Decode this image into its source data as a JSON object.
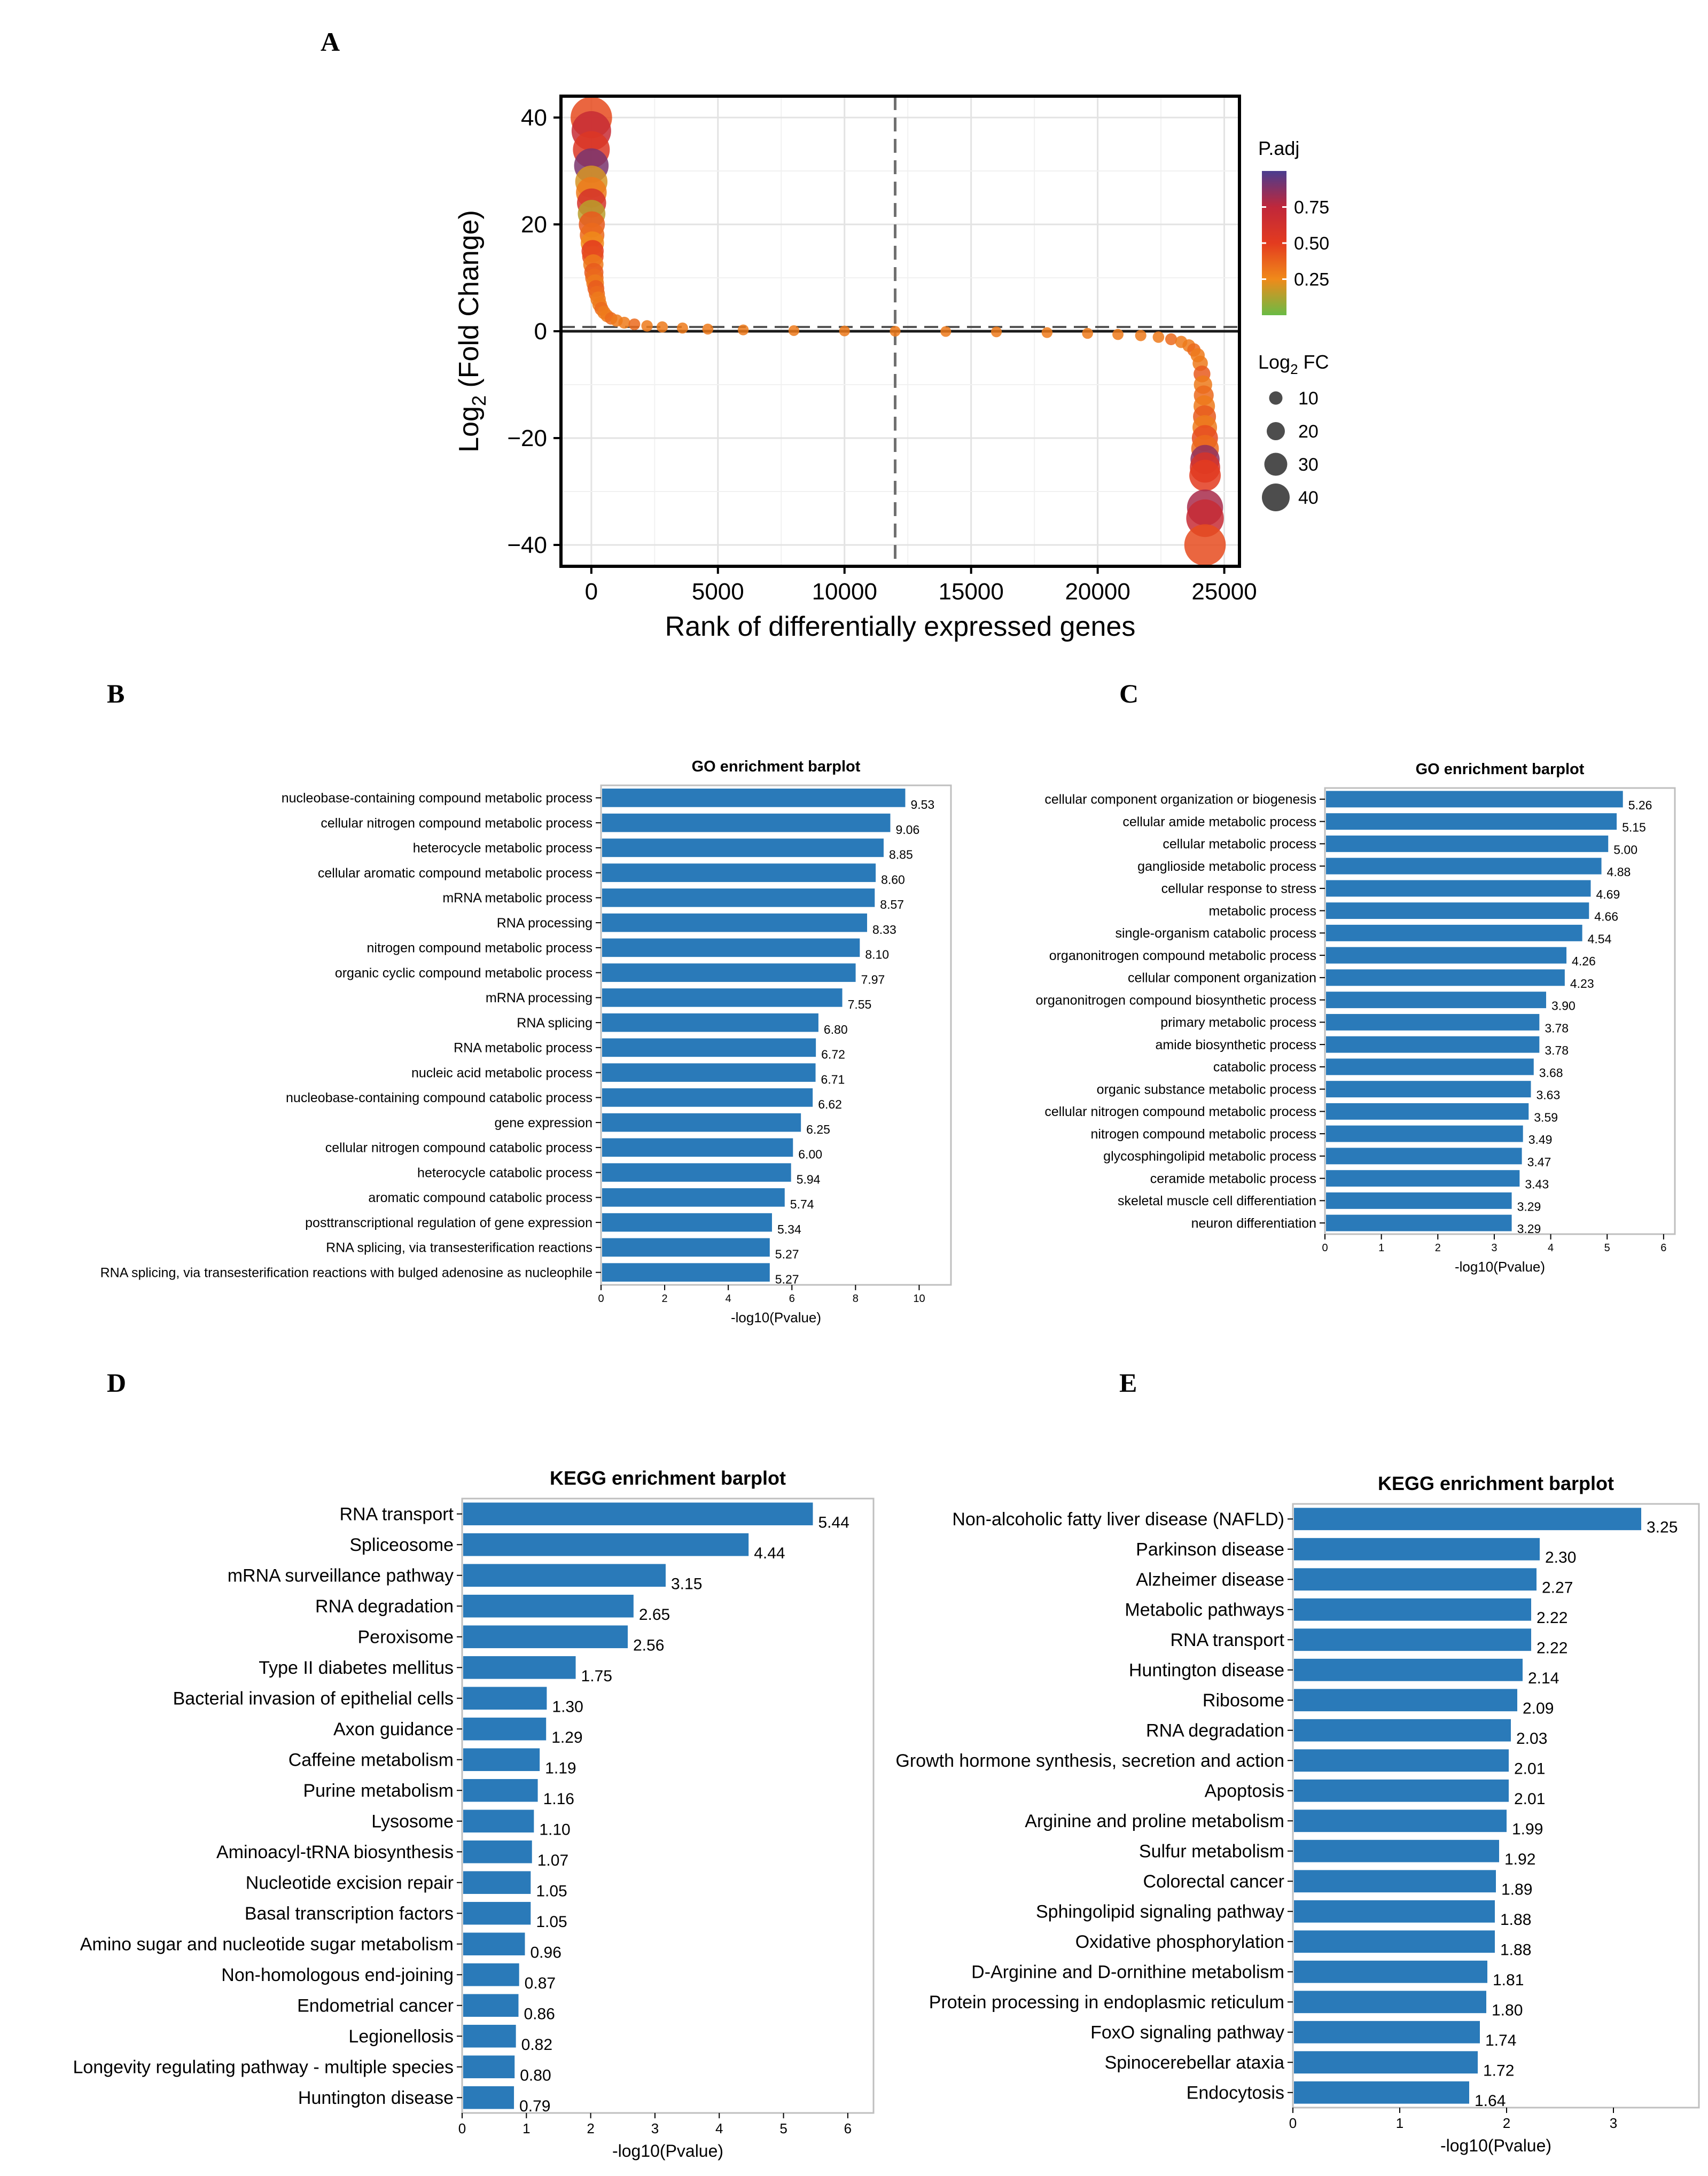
{
  "colors": {
    "bar": "#2a7ab9",
    "axis": "#000000",
    "grid": "#e3e3e3",
    "frame": "#bfbfbf",
    "refline": "#707070",
    "colorbar": [
      "#6abb45",
      "#f08a1a",
      "#e33b1f",
      "#c0273a",
      "#4a3d8f"
    ]
  },
  "chart_data": [
    {
      "panel": "A",
      "type": "scatter",
      "title": "",
      "xlabel": "Rank of differentially expressed genes",
      "ylabel_main": "Log",
      "ylabel_sub": "2",
      "ylabel_tail": " (Fold Change)",
      "xlim": [
        -1200,
        25600
      ],
      "ylim": [
        -44,
        44
      ],
      "xticks": [
        0,
        5000,
        10000,
        15000,
        20000,
        25000
      ],
      "xtick_labels": [
        "0",
        "5000",
        "10000",
        "15000",
        "20000",
        "25000"
      ],
      "yticks": [
        -40,
        -20,
        0,
        20,
        40
      ],
      "ytick_labels": [
        "−40",
        "−20",
        "0",
        "20",
        "40"
      ],
      "vline_x": 12000,
      "hline_y": 0,
      "legend_color_title": "P.adj",
      "legend_color_ticks": [
        0.25,
        0.5,
        0.75
      ],
      "legend_color_labels": [
        "0.25",
        "0.50",
        "0.75"
      ],
      "legend_size_title_main": "Log",
      "legend_size_title_sub": "2",
      "legend_size_title_tail": " FC",
      "legend_size_values": [
        10,
        20,
        30,
        40
      ],
      "legend_size_labels": [
        "10",
        "20",
        "30",
        "40"
      ],
      "points": [
        {
          "x": 0,
          "y": 40.0,
          "p": 0.45
        },
        {
          "x": 0,
          "y": 37.5,
          "p": 0.7
        },
        {
          "x": 0,
          "y": 34.0,
          "p": 0.55
        },
        {
          "x": 0,
          "y": 31.0,
          "p": 0.9
        },
        {
          "x": 0,
          "y": 28.0,
          "p": 0.2
        },
        {
          "x": 0,
          "y": 26.0,
          "p": 0.3
        },
        {
          "x": 10,
          "y": 24.0,
          "p": 0.6
        },
        {
          "x": 10,
          "y": 22.0,
          "p": 0.15
        },
        {
          "x": 20,
          "y": 20.0,
          "p": 0.4
        },
        {
          "x": 30,
          "y": 18.0,
          "p": 0.35
        },
        {
          "x": 40,
          "y": 16.5,
          "p": 0.25
        },
        {
          "x": 50,
          "y": 15.0,
          "p": 0.5
        },
        {
          "x": 60,
          "y": 14.0,
          "p": 0.45
        },
        {
          "x": 80,
          "y": 12.5,
          "p": 0.3
        },
        {
          "x": 100,
          "y": 11.0,
          "p": 0.4
        },
        {
          "x": 120,
          "y": 10.0,
          "p": 0.35
        },
        {
          "x": 150,
          "y": 9.0,
          "p": 0.3
        },
        {
          "x": 180,
          "y": 8.0,
          "p": 0.4
        },
        {
          "x": 220,
          "y": 7.0,
          "p": 0.35
        },
        {
          "x": 270,
          "y": 6.0,
          "p": 0.3
        },
        {
          "x": 330,
          "y": 5.0,
          "p": 0.3
        },
        {
          "x": 400,
          "y": 4.2,
          "p": 0.35
        },
        {
          "x": 500,
          "y": 3.5,
          "p": 0.3
        },
        {
          "x": 620,
          "y": 2.9,
          "p": 0.3
        },
        {
          "x": 780,
          "y": 2.4,
          "p": 0.35
        },
        {
          "x": 1000,
          "y": 2.0,
          "p": 0.3
        },
        {
          "x": 1300,
          "y": 1.6,
          "p": 0.3
        },
        {
          "x": 1700,
          "y": 1.3,
          "p": 0.35
        },
        {
          "x": 2200,
          "y": 1.0,
          "p": 0.3
        },
        {
          "x": 2800,
          "y": 0.8,
          "p": 0.3
        },
        {
          "x": 3600,
          "y": 0.6,
          "p": 0.3
        },
        {
          "x": 4600,
          "y": 0.4,
          "p": 0.3
        },
        {
          "x": 6000,
          "y": 0.25,
          "p": 0.3
        },
        {
          "x": 8000,
          "y": 0.12,
          "p": 0.3
        },
        {
          "x": 10000,
          "y": 0.05,
          "p": 0.3
        },
        {
          "x": 12000,
          "y": 0.0,
          "p": 0.3
        },
        {
          "x": 14000,
          "y": -0.05,
          "p": 0.3
        },
        {
          "x": 16000,
          "y": -0.12,
          "p": 0.3
        },
        {
          "x": 18000,
          "y": -0.25,
          "p": 0.3
        },
        {
          "x": 19600,
          "y": -0.4,
          "p": 0.3
        },
        {
          "x": 20800,
          "y": -0.6,
          "p": 0.3
        },
        {
          "x": 21700,
          "y": -0.8,
          "p": 0.3
        },
        {
          "x": 22400,
          "y": -1.1,
          "p": 0.3
        },
        {
          "x": 22900,
          "y": -1.5,
          "p": 0.35
        },
        {
          "x": 23300,
          "y": -2.0,
          "p": 0.3
        },
        {
          "x": 23600,
          "y": -2.7,
          "p": 0.3
        },
        {
          "x": 23800,
          "y": -3.5,
          "p": 0.35
        },
        {
          "x": 23950,
          "y": -4.5,
          "p": 0.3
        },
        {
          "x": 24050,
          "y": -6.0,
          "p": 0.3
        },
        {
          "x": 24120,
          "y": -8.0,
          "p": 0.4
        },
        {
          "x": 24160,
          "y": -10.0,
          "p": 0.3
        },
        {
          "x": 24190,
          "y": -12.0,
          "p": 0.35
        },
        {
          "x": 24210,
          "y": -14.0,
          "p": 0.3
        },
        {
          "x": 24220,
          "y": -16.0,
          "p": 0.4
        },
        {
          "x": 24230,
          "y": -18.0,
          "p": 0.3
        },
        {
          "x": 24235,
          "y": -20.0,
          "p": 0.45
        },
        {
          "x": 24240,
          "y": -22.0,
          "p": 0.35
        },
        {
          "x": 24240,
          "y": -24.0,
          "p": 0.85
        },
        {
          "x": 24240,
          "y": -25.5,
          "p": 0.6
        },
        {
          "x": 24240,
          "y": -27.0,
          "p": 0.5
        },
        {
          "x": 24240,
          "y": -33.0,
          "p": 0.8
        },
        {
          "x": 24240,
          "y": -35.0,
          "p": 0.7
        },
        {
          "x": 24240,
          "y": -40.0,
          "p": 0.45
        }
      ]
    },
    {
      "panel": "B",
      "type": "bar",
      "orientation": "horizontal",
      "title": "GO enrichment barplot",
      "xlabel": "-log10(Pvalue)",
      "xlim": [
        0,
        11
      ],
      "xticks": [
        0,
        2,
        4,
        6,
        8,
        10
      ],
      "xtick_labels": [
        "0",
        "2",
        "4",
        "6",
        "8",
        "10"
      ],
      "categories": [
        "nucleobase-containing compound metabolic process",
        "cellular nitrogen compound metabolic process",
        "heterocycle metabolic process",
        "cellular aromatic compound metabolic process",
        "mRNA metabolic process",
        "RNA processing",
        "nitrogen compound metabolic process",
        "organic cyclic compound metabolic process",
        "mRNA processing",
        "RNA splicing",
        "RNA metabolic process",
        "nucleic acid metabolic process",
        "nucleobase-containing compound catabolic process",
        "gene expression",
        "cellular nitrogen compound catabolic process",
        "heterocycle catabolic process",
        "aromatic compound catabolic process",
        "posttranscriptional regulation of gene expression",
        "RNA splicing, via transesterification reactions",
        "RNA splicing, via transesterification reactions with bulged adenosine as nucleophile"
      ],
      "values": [
        9.53,
        9.06,
        8.85,
        8.6,
        8.57,
        8.33,
        8.1,
        7.97,
        7.55,
        6.8,
        6.72,
        6.71,
        6.62,
        6.25,
        6.0,
        5.94,
        5.74,
        5.34,
        5.27,
        5.27
      ],
      "value_labels": [
        "9.53",
        "9.06",
        "8.85",
        "8.60",
        "8.57",
        "8.33",
        "8.10",
        "7.97",
        "7.55",
        "6.80",
        "6.72",
        "6.71",
        "6.62",
        "6.25",
        "6.00",
        "5.94",
        "5.74",
        "5.34",
        "5.27",
        "5.27"
      ]
    },
    {
      "panel": "C",
      "type": "bar",
      "orientation": "horizontal",
      "title": "GO enrichment barplot",
      "xlabel": "-log10(Pvalue)",
      "xlim": [
        0,
        6.2
      ],
      "xticks": [
        0,
        1,
        2,
        3,
        4,
        5,
        6
      ],
      "xtick_labels": [
        "0",
        "1",
        "2",
        "3",
        "4",
        "5",
        "6"
      ],
      "categories": [
        "cellular component organization or biogenesis",
        "cellular amide metabolic process",
        "cellular metabolic process",
        "ganglioside metabolic process",
        "cellular response to stress",
        "metabolic process",
        "single-organism catabolic process",
        "organonitrogen compound metabolic process",
        "cellular component organization",
        "organonitrogen compound biosynthetic process",
        "primary metabolic process",
        "amide biosynthetic process",
        "catabolic process",
        "organic substance metabolic process",
        "cellular nitrogen compound metabolic process",
        "nitrogen compound metabolic process",
        "glycosphingolipid metabolic process",
        "ceramide metabolic process",
        "skeletal muscle cell differentiation",
        "neuron differentiation"
      ],
      "values": [
        5.26,
        5.15,
        5.0,
        4.88,
        4.69,
        4.66,
        4.54,
        4.26,
        4.23,
        3.9,
        3.78,
        3.78,
        3.68,
        3.63,
        3.59,
        3.49,
        3.47,
        3.43,
        3.29,
        3.29
      ],
      "value_labels": [
        "5.26",
        "5.15",
        "5.00",
        "4.88",
        "4.69",
        "4.66",
        "4.54",
        "4.26",
        "4.23",
        "3.90",
        "3.78",
        "3.78",
        "3.68",
        "3.63",
        "3.59",
        "3.49",
        "3.47",
        "3.43",
        "3.29",
        "3.29"
      ]
    },
    {
      "panel": "D",
      "type": "bar",
      "orientation": "horizontal",
      "title": "KEGG enrichment barplot",
      "xlabel": "-log10(Pvalue)",
      "xlim": [
        0,
        6.4
      ],
      "xticks": [
        0,
        1,
        2,
        3,
        4,
        5,
        6
      ],
      "xtick_labels": [
        "0",
        "1",
        "2",
        "3",
        "4",
        "5",
        "6"
      ],
      "categories": [
        "RNA transport",
        "Spliceosome",
        "mRNA surveillance pathway",
        "RNA degradation",
        "Peroxisome",
        "Type II diabetes mellitus",
        "Bacterial invasion of epithelial cells",
        "Axon guidance",
        "Caffeine metabolism",
        "Purine metabolism",
        "Lysosome",
        "Aminoacyl-tRNA biosynthesis",
        "Nucleotide excision repair",
        "Basal transcription factors",
        "Amino sugar and nucleotide sugar metabolism",
        "Non-homologous end-joining",
        "Endometrial cancer",
        "Legionellosis",
        "Longevity regulating pathway - multiple species",
        "Huntington disease"
      ],
      "values": [
        5.44,
        4.44,
        3.15,
        2.65,
        2.56,
        1.75,
        1.3,
        1.29,
        1.19,
        1.16,
        1.1,
        1.07,
        1.05,
        1.05,
        0.96,
        0.87,
        0.86,
        0.82,
        0.8,
        0.79
      ],
      "value_labels": [
        "5.44",
        "4.44",
        "3.15",
        "2.65",
        "2.56",
        "1.75",
        "1.30",
        "1.29",
        "1.19",
        "1.16",
        "1.10",
        "1.07",
        "1.05",
        "1.05",
        "0.96",
        "0.87",
        "0.86",
        "0.82",
        "0.80",
        "0.79"
      ]
    },
    {
      "panel": "E",
      "type": "bar",
      "orientation": "horizontal",
      "title": "KEGG enrichment barplot",
      "xlabel": "-log10(Pvalue)",
      "xlim": [
        0,
        3.8
      ],
      "xticks": [
        0,
        1,
        2,
        3
      ],
      "xtick_labels": [
        "0",
        "1",
        "2",
        "3"
      ],
      "categories": [
        "Non-alcoholic fatty liver disease (NAFLD)",
        "Parkinson disease",
        "Alzheimer disease",
        "Metabolic pathways",
        "RNA transport",
        "Huntington disease",
        "Ribosome",
        "RNA degradation",
        "Growth hormone synthesis, secretion and action",
        "Apoptosis",
        "Arginine and proline metabolism",
        "Sulfur metabolism",
        "Colorectal cancer",
        "Sphingolipid signaling pathway",
        "Oxidative phosphorylation",
        "D-Arginine and D-ornithine metabolism",
        "Protein processing in endoplasmic reticulum",
        "FoxO signaling pathway",
        "Spinocerebellar ataxia",
        "Endocytosis"
      ],
      "values": [
        3.25,
        2.3,
        2.27,
        2.22,
        2.22,
        2.14,
        2.09,
        2.03,
        2.01,
        2.01,
        1.99,
        1.92,
        1.89,
        1.88,
        1.88,
        1.81,
        1.8,
        1.74,
        1.72,
        1.64
      ],
      "value_labels": [
        "3.25",
        "2.30",
        "2.27",
        "2.22",
        "2.22",
        "2.14",
        "2.09",
        "2.03",
        "2.01",
        "2.01",
        "1.99",
        "1.92",
        "1.89",
        "1.88",
        "1.88",
        "1.81",
        "1.80",
        "1.74",
        "1.72",
        "1.64"
      ]
    }
  ]
}
